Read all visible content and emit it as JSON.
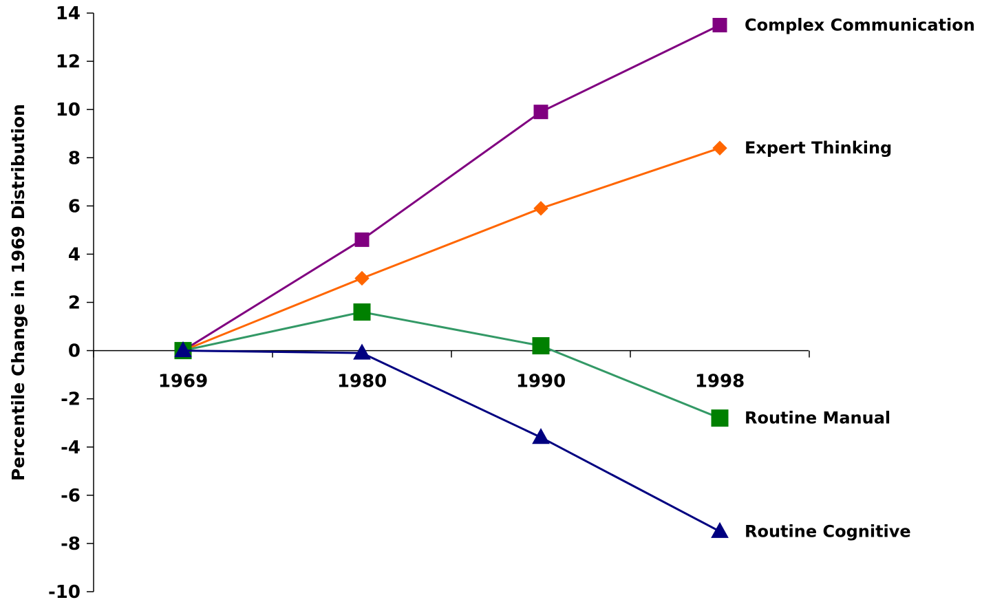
{
  "chart_data": {
    "type": "line",
    "x": [
      "1969",
      "1980",
      "1990",
      "1998"
    ],
    "ylabel": "Percentile Change in 1969 Distribution",
    "ylim": [
      -10,
      14
    ],
    "yticks": [
      "14",
      "12",
      "10",
      "8",
      "6",
      "4",
      "2",
      "0",
      "-2",
      "-4",
      "-6",
      "-8",
      "-10"
    ],
    "grid": false,
    "legend": "end-of-line labels",
    "series": [
      {
        "name": "Complex Communication",
        "values": [
          0,
          4.6,
          9.9,
          13.5
        ],
        "color": "#800080",
        "marker": "square",
        "marker_size": 20
      },
      {
        "name": "Expert Thinking",
        "values": [
          0,
          3.0,
          5.9,
          8.4
        ],
        "color": "#FF6600",
        "marker": "diamond",
        "marker_size": 20
      },
      {
        "name": "Routine Manual",
        "values": [
          0,
          1.6,
          0.2,
          -2.8
        ],
        "color": "#339966",
        "marker": "square",
        "marker_size": 24,
        "marker_color": "#008000"
      },
      {
        "name": "Routine Cognitive",
        "values": [
          0,
          -0.1,
          -3.6,
          -7.5
        ],
        "color": "#000080",
        "marker": "triangle",
        "marker_size": 24
      }
    ]
  }
}
